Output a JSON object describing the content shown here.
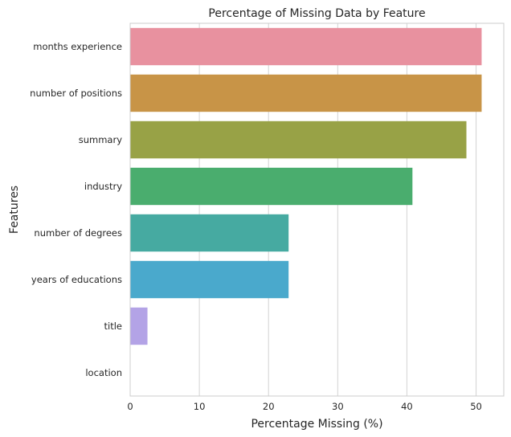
{
  "chart_data": {
    "type": "bar",
    "orientation": "horizontal",
    "title": "Percentage of Missing Data by Feature",
    "xlabel": "Percentage Missing (%)",
    "ylabel": "Features",
    "categories": [
      "months experience",
      "number of positions",
      "summary",
      "industry",
      "number of degrees",
      "years of educations",
      "title",
      "location"
    ],
    "values": [
      50.8,
      50.8,
      48.6,
      40.8,
      22.9,
      22.9,
      2.5,
      0.0
    ],
    "colors": [
      "#e8919f",
      "#c89447",
      "#98a246",
      "#4aad6e",
      "#46aaa1",
      "#4aa9cc",
      "#b3a3e6",
      "#e78bbd"
    ],
    "xlim": [
      0,
      54
    ],
    "xticks": [
      0,
      10,
      20,
      30,
      40,
      50
    ],
    "grid": true,
    "legend": "none"
  }
}
